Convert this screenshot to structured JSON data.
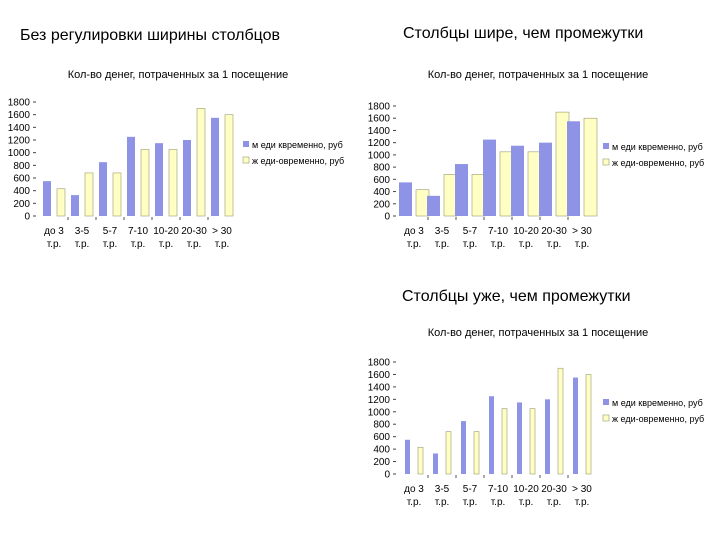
{
  "headings": {
    "left": "Без регулировки ширины столбцов",
    "top_right": "Столбцы шире, чем промежутки",
    "bottom_right": "Столбцы уже, чем промежутки"
  },
  "colors": {
    "series_1": "#8e93e6",
    "series_2": "#ffffc4",
    "stroke": "#666666"
  },
  "chart_data": [
    {
      "type": "bar",
      "bar_style": "default",
      "title": "Кол-во денег, потраченных за 1 посещение",
      "categories": [
        [
          "до 3",
          "т.р."
        ],
        [
          "3-5",
          "т.р."
        ],
        [
          "5-7",
          "т.р."
        ],
        [
          "7-10",
          "т.р."
        ],
        [
          "10-20",
          "т.р."
        ],
        [
          "20-30",
          "т.р."
        ],
        [
          "> 30",
          "т.р."
        ]
      ],
      "series": [
        {
          "name": "м еди квременно, руб",
          "values": [
            550,
            330,
            850,
            1250,
            1150,
            1200,
            1550
          ]
        },
        {
          "name": "ж еди-овременно, руб",
          "values": [
            430,
            680,
            680,
            1050,
            1050,
            1700,
            1600
          ]
        }
      ],
      "yticks": [
        0,
        200,
        400,
        600,
        800,
        1000,
        1200,
        1400,
        1600,
        1800
      ],
      "ylim": [
        0,
        1800
      ],
      "grid": false,
      "legend": "right"
    },
    {
      "type": "bar",
      "bar_style": "wide",
      "title": "Кол-во денег, потраченных за 1 посещение",
      "categories": [
        [
          "до 3",
          "т.р."
        ],
        [
          "3-5",
          "т.р."
        ],
        [
          "5-7",
          "т.р."
        ],
        [
          "7-10",
          "т.р."
        ],
        [
          "10-20",
          "т.р."
        ],
        [
          "20-30",
          "т.р."
        ],
        [
          "> 30",
          "т.р."
        ]
      ],
      "series": [
        {
          "name": "м еди квременно, руб",
          "values": [
            550,
            330,
            850,
            1250,
            1150,
            1200,
            1550
          ]
        },
        {
          "name": "ж еди-овременно, руб",
          "values": [
            430,
            680,
            680,
            1050,
            1050,
            1700,
            1600
          ]
        }
      ],
      "yticks": [
        0,
        200,
        400,
        600,
        800,
        1000,
        1200,
        1400,
        1600,
        1800
      ],
      "ylim": [
        0,
        1800
      ],
      "grid": false,
      "legend": "right"
    },
    {
      "type": "bar",
      "bar_style": "narrow",
      "title": "Кол-во денег, потраченных за 1 посещение",
      "categories": [
        [
          "до 3",
          "т.р."
        ],
        [
          "3-5",
          "т.р."
        ],
        [
          "5-7",
          "т.р."
        ],
        [
          "7-10",
          "т.р."
        ],
        [
          "10-20",
          "т.р."
        ],
        [
          "20-30",
          "т.р."
        ],
        [
          "> 30",
          "т.р."
        ]
      ],
      "series": [
        {
          "name": "м еди квременно, руб",
          "values": [
            550,
            330,
            850,
            1250,
            1150,
            1200,
            1550
          ]
        },
        {
          "name": "ж еди-овременно, руб",
          "values": [
            430,
            680,
            680,
            1050,
            1050,
            1700,
            1600
          ]
        }
      ],
      "yticks": [
        0,
        200,
        400,
        600,
        800,
        1000,
        1200,
        1400,
        1600,
        1800
      ],
      "ylim": [
        0,
        1800
      ],
      "grid": false,
      "legend": "right"
    }
  ]
}
